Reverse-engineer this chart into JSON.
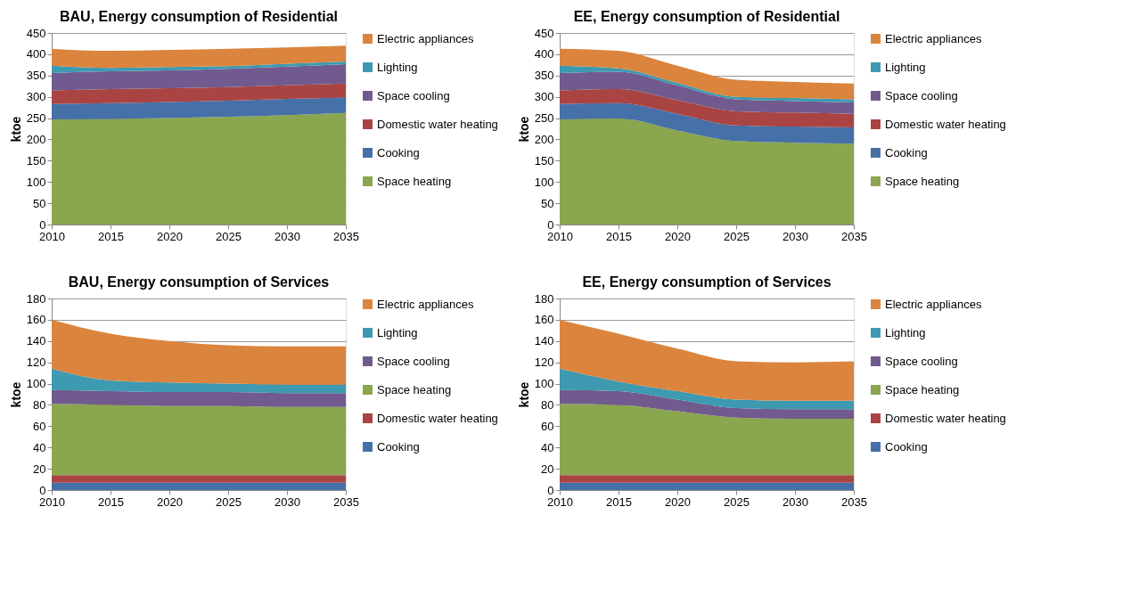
{
  "chart_data": [
    {
      "type": "area",
      "title": "BAU, Energy consumption of Residential",
      "ylabel": "ktoe",
      "stacked": true,
      "grid": "y",
      "legend": "right",
      "x": [
        2010,
        2015,
        2020,
        2025,
        2030,
        2035
      ],
      "xlim": [
        2010,
        2035
      ],
      "xticks": [
        2010,
        2015,
        2020,
        2025,
        2030,
        2035
      ],
      "ylim": [
        0,
        450
      ],
      "yticks": [
        0,
        50,
        100,
        150,
        200,
        250,
        300,
        350,
        400,
        450
      ],
      "series": [
        {
          "name": "Space heating",
          "color": "#8aa64e",
          "values": [
            247,
            248,
            250,
            253,
            257,
            262
          ]
        },
        {
          "name": "Cooking",
          "color": "#4570a8",
          "values": [
            36,
            37,
            38,
            38,
            38,
            37
          ]
        },
        {
          "name": "Domestic water heating",
          "color": "#a94442",
          "values": [
            32,
            33,
            32,
            32,
            32,
            32
          ]
        },
        {
          "name": "Space cooling",
          "color": "#715a8e",
          "values": [
            41,
            42,
            42,
            43,
            44,
            46
          ]
        },
        {
          "name": "Lighting",
          "color": "#3d9ab0",
          "values": [
            17,
            8,
            8,
            6,
            7,
            6
          ]
        },
        {
          "name": "Electric appliances",
          "color": "#db843d",
          "values": [
            40,
            40,
            40,
            41,
            38,
            37
          ]
        }
      ]
    },
    {
      "type": "area",
      "title": "EE, Energy consumption of Residential",
      "ylabel": "ktoe",
      "stacked": true,
      "grid": "y",
      "legend": "right",
      "x": [
        2010,
        2015,
        2020,
        2025,
        2030,
        2035
      ],
      "xlim": [
        2010,
        2035
      ],
      "xticks": [
        2010,
        2015,
        2020,
        2025,
        2030,
        2035
      ],
      "ylim": [
        0,
        450
      ],
      "yticks": [
        0,
        50,
        100,
        150,
        200,
        250,
        300,
        350,
        400,
        450
      ],
      "series": [
        {
          "name": "Space heating",
          "color": "#8aa64e",
          "values": [
            247,
            249,
            221,
            196,
            192,
            190
          ]
        },
        {
          "name": "Cooking",
          "color": "#4570a8",
          "values": [
            36,
            36,
            39,
            37,
            38,
            38
          ]
        },
        {
          "name": "Domestic water heating",
          "color": "#a94442",
          "values": [
            32,
            33,
            32,
            33,
            33,
            32
          ]
        },
        {
          "name": "Space cooling",
          "color": "#715a8e",
          "values": [
            41,
            41,
            35,
            28,
            27,
            27
          ]
        },
        {
          "name": "Lighting",
          "color": "#3d9ab0",
          "values": [
            17,
            8,
            6,
            6,
            7,
            7
          ]
        },
        {
          "name": "Electric appliances",
          "color": "#db843d",
          "values": [
            40,
            41,
            40,
            40,
            38,
            37
          ]
        }
      ]
    },
    {
      "type": "area",
      "title": "BAU, Energy consumption of Services",
      "ylabel": "ktoe",
      "stacked": true,
      "grid": "y",
      "legend": "right",
      "x": [
        2010,
        2015,
        2020,
        2025,
        2030,
        2035
      ],
      "xlim": [
        2010,
        2035
      ],
      "xticks": [
        2010,
        2015,
        2020,
        2025,
        2030,
        2035
      ],
      "ylim": [
        0,
        180
      ],
      "yticks": [
        0,
        20,
        40,
        60,
        80,
        100,
        120,
        140,
        160,
        180
      ],
      "series": [
        {
          "name": "Cooking",
          "color": "#4570a8",
          "values": [
            7,
            7,
            7,
            7,
            7,
            7
          ]
        },
        {
          "name": "Domestic water heating",
          "color": "#a94442",
          "values": [
            7,
            7,
            7,
            7,
            7,
            7
          ]
        },
        {
          "name": "Space heating",
          "color": "#8aa64e",
          "values": [
            67,
            66,
            65,
            65,
            64,
            64
          ]
        },
        {
          "name": "Space cooling",
          "color": "#715a8e",
          "values": [
            13,
            13,
            13,
            13,
            13,
            13
          ]
        },
        {
          "name": "Lighting",
          "color": "#3d9ab0",
          "values": [
            20,
            10,
            9,
            8,
            8,
            8
          ]
        },
        {
          "name": "Electric appliances",
          "color": "#db843d",
          "values": [
            46,
            44,
            39,
            36,
            36,
            36
          ]
        }
      ]
    },
    {
      "type": "area",
      "title": "EE, Energy consumption of Services",
      "ylabel": "ktoe",
      "stacked": true,
      "grid": "y",
      "legend": "right",
      "x": [
        2010,
        2015,
        2020,
        2025,
        2030,
        2035
      ],
      "xlim": [
        2010,
        2035
      ],
      "xticks": [
        2010,
        2015,
        2020,
        2025,
        2030,
        2035
      ],
      "ylim": [
        0,
        180
      ],
      "yticks": [
        0,
        20,
        40,
        60,
        80,
        100,
        120,
        140,
        160,
        180
      ],
      "series": [
        {
          "name": "Cooking",
          "color": "#4570a8",
          "values": [
            7,
            7,
            7,
            7,
            7,
            7
          ]
        },
        {
          "name": "Domestic water heating",
          "color": "#a94442",
          "values": [
            7,
            7,
            7,
            7,
            7,
            7
          ]
        },
        {
          "name": "Space heating",
          "color": "#8aa64e",
          "values": [
            67,
            66,
            60,
            54,
            53,
            53
          ]
        },
        {
          "name": "Space cooling",
          "color": "#715a8e",
          "values": [
            13,
            13,
            11,
            9,
            9,
            9
          ]
        },
        {
          "name": "Lighting",
          "color": "#3d9ab0",
          "values": [
            20,
            9,
            8,
            8,
            8,
            8
          ]
        },
        {
          "name": "Electric appliances",
          "color": "#db843d",
          "values": [
            46,
            45,
            40,
            36,
            36,
            37
          ]
        }
      ]
    }
  ]
}
